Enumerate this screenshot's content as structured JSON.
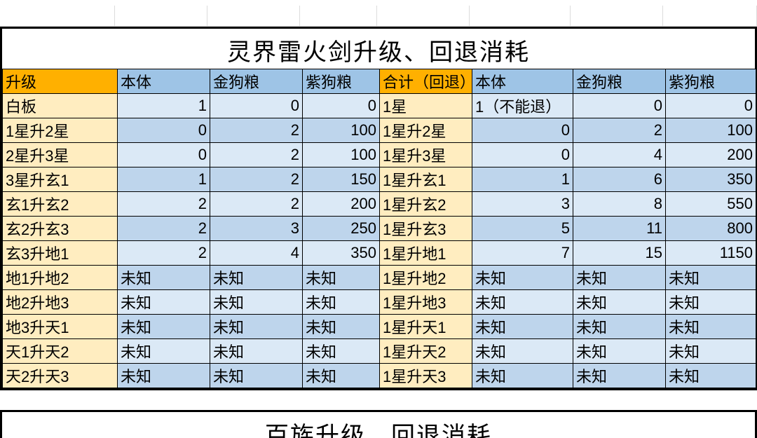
{
  "colors": {
    "orange": "#ffb000",
    "headerBlue": "#9ec4e6",
    "cream": "#ffedc0",
    "lightBlue": "#dbe9f6",
    "midBlue": "#bed5ec",
    "white": "#ffffff",
    "black": "#000000",
    "gridGray": "#dcdcdc"
  },
  "table1": {
    "title": "灵界雷火剑升级、回退消耗",
    "headers": {
      "left": "升级",
      "c2": "本体",
      "c3": "金狗粮",
      "c4": "紫狗粮",
      "right": "合计（回退）",
      "c6": "本体",
      "c7": "金狗粮",
      "c8": "紫狗粮"
    },
    "rows": [
      {
        "l": "白板",
        "a": "1",
        "b": "0",
        "c": "0",
        "r": "1星",
        "d": "1（不能退）",
        "e": "0",
        "f": "0"
      },
      {
        "l": "1星升2星",
        "a": "0",
        "b": "2",
        "c": "100",
        "r": "1星升2星",
        "d": "0",
        "e": "2",
        "f": "100"
      },
      {
        "l": "2星升3星",
        "a": "0",
        "b": "2",
        "c": "100",
        "r": "1星升3星",
        "d": "0",
        "e": "4",
        "f": "200"
      },
      {
        "l": "3星升玄1",
        "a": "1",
        "b": "2",
        "c": "150",
        "r": "1星升玄1",
        "d": "1",
        "e": "6",
        "f": "350"
      },
      {
        "l": "玄1升玄2",
        "a": "2",
        "b": "2",
        "c": "200",
        "r": "1星升玄2",
        "d": "3",
        "e": "8",
        "f": "550"
      },
      {
        "l": "玄2升玄3",
        "a": "2",
        "b": "3",
        "c": "250",
        "r": "1星升玄3",
        "d": "5",
        "e": "11",
        "f": "800"
      },
      {
        "l": "玄3升地1",
        "a": "2",
        "b": "4",
        "c": "350",
        "r": "1星升地1",
        "d": "7",
        "e": "15",
        "f": "1150"
      },
      {
        "l": "地1升地2",
        "a": "未知",
        "b": "未知",
        "c": "未知",
        "r": "1星升地2",
        "d": "未知",
        "e": "未知",
        "f": "未知"
      },
      {
        "l": "地2升地3",
        "a": "未知",
        "b": "未知",
        "c": "未知",
        "r": "1星升地3",
        "d": "未知",
        "e": "未知",
        "f": "未知"
      },
      {
        "l": "地3升天1",
        "a": "未知",
        "b": "未知",
        "c": "未知",
        "r": "1星升天1",
        "d": "未知",
        "e": "未知",
        "f": "未知"
      },
      {
        "l": "天1升天2",
        "a": "未知",
        "b": "未知",
        "c": "未知",
        "r": "1星升天2",
        "d": "未知",
        "e": "未知",
        "f": "未知"
      },
      {
        "l": "天2升天3",
        "a": "未知",
        "b": "未知",
        "c": "未知",
        "r": "1星升天3",
        "d": "未知",
        "e": "未知",
        "f": "未知"
      }
    ],
    "rowShadePattern": [
      "light",
      "mid"
    ],
    "numericRowsUpTo": 7
  },
  "table2": {
    "titlePartial": "百族升级、回退消耗"
  },
  "fonts": {
    "title_pt": 34,
    "cell_pt": 22
  }
}
